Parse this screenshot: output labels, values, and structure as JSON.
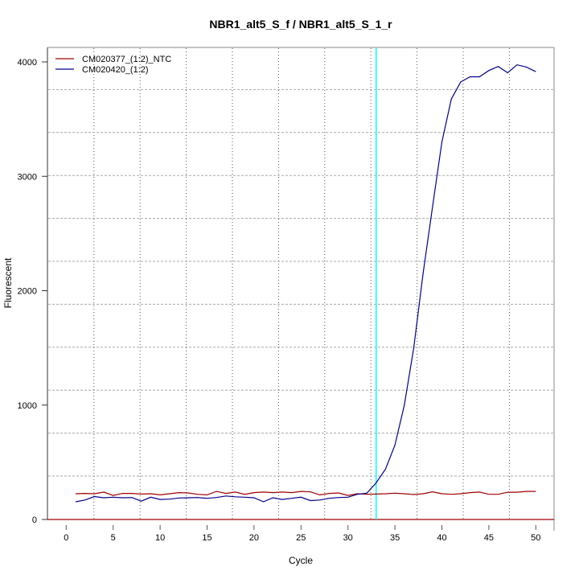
{
  "chart_data": {
    "type": "line",
    "title": "NBR1_alt5_S_f / NBR1_alt5_S_1_r",
    "xlabel": "Cycle",
    "ylabel": "Fluorescent",
    "xlim": [
      -2,
      52.5
    ],
    "ylim": [
      0,
      4000
    ],
    "xticks": [
      0,
      5,
      10,
      15,
      20,
      25,
      30,
      35,
      40,
      45,
      50
    ],
    "yticks": [
      0,
      1000,
      2000,
      3000,
      4000
    ],
    "grid": true,
    "legend_position": "top-left",
    "threshold_cycle": 33,
    "threshold_color": "#00ffff",
    "x": [
      1,
      2,
      3,
      4,
      5,
      6,
      7,
      8,
      9,
      10,
      11,
      12,
      13,
      14,
      15,
      16,
      17,
      18,
      19,
      20,
      21,
      22,
      23,
      24,
      25,
      26,
      27,
      28,
      29,
      30,
      31,
      32,
      33,
      34,
      35,
      36,
      37,
      38,
      39,
      40,
      41,
      42,
      43,
      44,
      45,
      46,
      47,
      48,
      49,
      50
    ],
    "series": [
      {
        "name": "CM020377_(1:2)_NTC",
        "color": "#a00000",
        "values": [
          225,
          228,
          225,
          240,
          210,
          228,
          228,
          222,
          225,
          215,
          225,
          235,
          232,
          220,
          215,
          245,
          228,
          240,
          220,
          235,
          240,
          235,
          240,
          235,
          245,
          242,
          215,
          228,
          232,
          210,
          225,
          220,
          222,
          225,
          230,
          225,
          218,
          225,
          242,
          225,
          220,
          225,
          235,
          240,
          220,
          220,
          238,
          238,
          245,
          245
        ]
      },
      {
        "name": "CM020420_(1:2)",
        "color": "#00008b",
        "values": [
          155,
          170,
          200,
          190,
          195,
          190,
          192,
          160,
          195,
          175,
          178,
          188,
          190,
          192,
          185,
          192,
          205,
          198,
          195,
          190,
          155,
          190,
          175,
          185,
          195,
          165,
          170,
          185,
          192,
          195,
          220,
          230,
          320,
          440,
          650,
          1000,
          1500,
          2150,
          2730,
          3300,
          3675,
          3825,
          3870,
          3870,
          3925,
          3960,
          3905,
          3975,
          3955,
          3915
        ]
      }
    ]
  }
}
